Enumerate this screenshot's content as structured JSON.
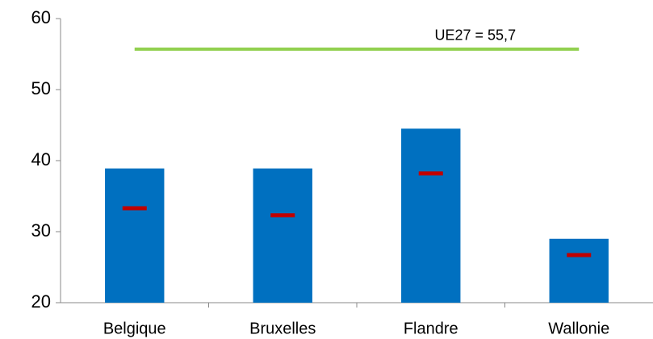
{
  "chart_data": {
    "type": "bar",
    "categories": [
      "Belgique",
      "Bruxelles",
      "Flandre",
      "Wallonie"
    ],
    "series": [
      {
        "color": "#0070c0",
        "values": [
          38.9,
          38.9,
          44.5,
          29.0
        ]
      },
      {
        "type": "marker",
        "color": "#c00000",
        "values": [
          33.3,
          32.3,
          38.2,
          26.7
        ]
      }
    ],
    "reference": {
      "value": 55.7,
      "label": "UE27 = 55,7",
      "color": "#92d050"
    },
    "ylim": [
      20,
      60
    ],
    "yticks": [
      20,
      30,
      40,
      50,
      60
    ],
    "grid": false
  }
}
